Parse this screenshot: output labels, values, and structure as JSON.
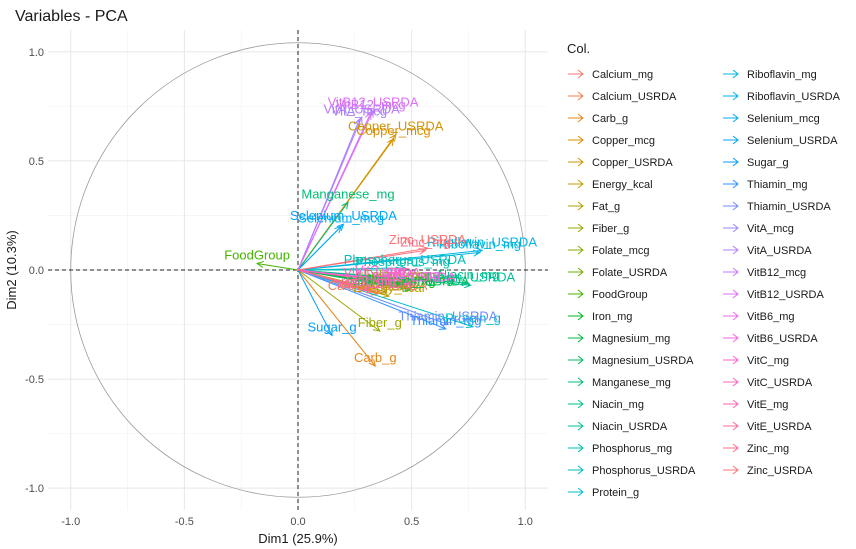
{
  "chart_data": {
    "type": "scatter",
    "title": "Variables - PCA",
    "xlabel": "Dim1 (25.9%)",
    "ylabel": "Dim2 (10.3%)",
    "xlim": [
      -1.1,
      1.1
    ],
    "ylim": [
      -1.1,
      1.1
    ],
    "x_ticks": [
      "-1.0",
      "-0.5",
      "0.0",
      "0.5",
      "1.0"
    ],
    "y_ticks": [
      "-1.0",
      "-0.5",
      "0.0",
      "0.5",
      "1.0"
    ],
    "grid": true,
    "legend_title": "Col.",
    "legend_position": "right",
    "series": [
      {
        "name": "Calcium_mg",
        "x": 0.36,
        "y": -0.1,
        "color": "#F8766D"
      },
      {
        "name": "Calcium_USRDA",
        "x": 0.35,
        "y": -0.11,
        "color": "#F17D50"
      },
      {
        "name": "Carb_g",
        "x": 0.34,
        "y": -0.44,
        "color": "#E7861B"
      },
      {
        "name": "Copper_mcg",
        "x": 0.42,
        "y": 0.6,
        "color": "#DC8E00"
      },
      {
        "name": "Copper_USRDA",
        "x": 0.43,
        "y": 0.62,
        "color": "#CF9400"
      },
      {
        "name": "Energy_kcal",
        "x": 0.4,
        "y": -0.12,
        "color": "#C09B00"
      },
      {
        "name": "Fat_g",
        "x": 0.39,
        "y": -0.1,
        "color": "#B0A100"
      },
      {
        "name": "Fiber_g",
        "x": 0.36,
        "y": -0.28,
        "color": "#9DA700"
      },
      {
        "name": "Folate_mcg",
        "x": 0.44,
        "y": -0.06,
        "color": "#86AC00"
      },
      {
        "name": "Folate_USRDA",
        "x": 0.45,
        "y": -0.07,
        "color": "#6BB100"
      },
      {
        "name": "FoodGroup",
        "x": -0.18,
        "y": 0.03,
        "color": "#45B500"
      },
      {
        "name": "Iron_mg",
        "x": 0.5,
        "y": -0.09,
        "color": "#00B81F"
      },
      {
        "name": "Magnesium_mg",
        "x": 0.48,
        "y": -0.08,
        "color": "#00BB45"
      },
      {
        "name": "Magnesium_USRDA",
        "x": 0.49,
        "y": -0.09,
        "color": "#00BD5E"
      },
      {
        "name": "Manganese_mg",
        "x": 0.22,
        "y": 0.31,
        "color": "#00BF74"
      },
      {
        "name": "Niacin_mg",
        "x": 0.75,
        "y": -0.06,
        "color": "#00C087"
      },
      {
        "name": "Niacin_USRDA",
        "x": 0.76,
        "y": -0.07,
        "color": "#00C19A"
      },
      {
        "name": "Phosphorus_mg",
        "x": 0.46,
        "y": 0.0,
        "color": "#00C0AC"
      },
      {
        "name": "Phosphorus_USRDA",
        "x": 0.47,
        "y": 0.01,
        "color": "#00BFBD"
      },
      {
        "name": "Protein_g",
        "x": 0.77,
        "y": -0.26,
        "color": "#00BCCC"
      },
      {
        "name": "Riboflavin_mg",
        "x": 0.8,
        "y": 0.08,
        "color": "#00B8DB"
      },
      {
        "name": "Riboflavin_USRDA",
        "x": 0.81,
        "y": 0.09,
        "color": "#00B2E8"
      },
      {
        "name": "Selenium_mcg",
        "x": 0.19,
        "y": 0.2,
        "color": "#00ACF2"
      },
      {
        "name": "Selenium_USRDA",
        "x": 0.2,
        "y": 0.21,
        "color": "#00A5FC"
      },
      {
        "name": "Sugar_g",
        "x": 0.15,
        "y": -0.3,
        "color": "#009DFF"
      },
      {
        "name": "Thiamin_mg",
        "x": 0.65,
        "y": -0.27,
        "color": "#2E91FF"
      },
      {
        "name": "Thiamin_USRDA",
        "x": 0.66,
        "y": -0.25,
        "color": "#6E8BFF"
      },
      {
        "name": "VitA_mcg",
        "x": 0.27,
        "y": 0.69,
        "color": "#9E83FF"
      },
      {
        "name": "VitA_USRDA",
        "x": 0.28,
        "y": 0.7,
        "color": "#B87BFF"
      },
      {
        "name": "VitB12_mcg",
        "x": 0.32,
        "y": 0.72,
        "color": "#CE74FE"
      },
      {
        "name": "VitB12_USRDA",
        "x": 0.33,
        "y": 0.73,
        "color": "#DF6EF5"
      },
      {
        "name": "VitB6_mg",
        "x": 0.5,
        "y": -0.06,
        "color": "#EC68EA"
      },
      {
        "name": "VitB6_USRDA",
        "x": 0.51,
        "y": -0.07,
        "color": "#F563DE"
      },
      {
        "name": "VitC_mg",
        "x": 0.36,
        "y": -0.04,
        "color": "#FB61D0"
      },
      {
        "name": "VitC_USRDA",
        "x": 0.37,
        "y": -0.05,
        "color": "#FF61C0"
      },
      {
        "name": "VitE_mg",
        "x": 0.32,
        "y": -0.09,
        "color": "#FF63AF"
      },
      {
        "name": "VitE_USRDA",
        "x": 0.33,
        "y": -0.1,
        "color": "#FF679C"
      },
      {
        "name": "Zinc_mg",
        "x": 0.56,
        "y": 0.09,
        "color": "#FF6C87"
      },
      {
        "name": "Zinc_USRDA",
        "x": 0.57,
        "y": 0.1,
        "color": "#FC7270"
      }
    ]
  }
}
